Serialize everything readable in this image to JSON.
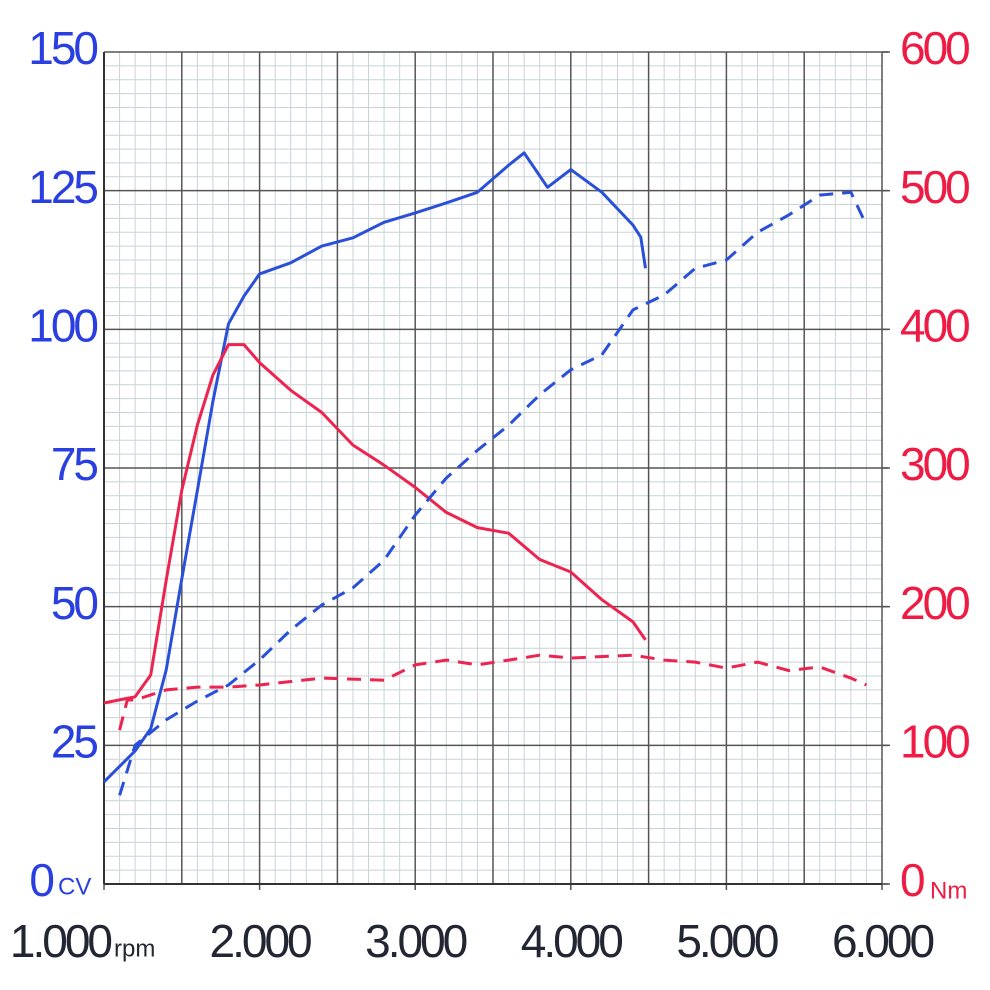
{
  "chart_data": {
    "type": "line",
    "x_unit": "rpm",
    "y_unit": "CV",
    "y2_unit": "Nm",
    "xlim": [
      1000,
      6000
    ],
    "xticks": [
      {
        "value": 1000,
        "label": "1.000"
      },
      {
        "value": 2000,
        "label": "2.000"
      },
      {
        "value": 3000,
        "label": "3.000"
      },
      {
        "value": 4000,
        "label": "4.000"
      },
      {
        "value": 5000,
        "label": "5.000"
      },
      {
        "value": 6000,
        "label": "6.000"
      }
    ],
    "ylim": [
      0,
      150
    ],
    "yticks": [
      0,
      25,
      50,
      75,
      100,
      125,
      150
    ],
    "y2lim": [
      0,
      600
    ],
    "y2ticks": [
      0,
      100,
      200,
      300,
      400,
      500,
      600
    ],
    "grid": true,
    "minor_grid": true,
    "y_color": "#2a3fe0",
    "y2_color": "#ee1c44",
    "x_color": "#222633",
    "series": [
      {
        "color": "#2a4fd8",
        "dashed": false,
        "x": [
          1000,
          1200,
          1300,
          1400,
          1500,
          1600,
          1700,
          1800,
          1900,
          2000,
          2200,
          2400,
          2600,
          2800,
          3000,
          3200,
          3400,
          3600,
          3700,
          3850,
          4000,
          4200,
          4400,
          4450,
          4480
        ],
        "values": [
          18.4,
          24,
          28,
          38.6,
          55,
          71,
          87,
          101,
          106,
          110,
          112,
          115,
          116.5,
          119.3,
          121,
          122.8,
          124.7,
          129.6,
          131.8,
          125.6,
          128.8,
          124.7,
          118.8,
          116.6,
          111
        ]
      },
      {
        "color": "#ec2450",
        "dashed": false,
        "axis": "y2",
        "x": [
          1000,
          1200,
          1300,
          1400,
          1500,
          1600,
          1700,
          1800,
          1900,
          2000,
          2200,
          2400,
          2600,
          2800,
          3000,
          3200,
          3400,
          3600,
          3800,
          4000,
          4200,
          4400,
          4480
        ],
        "values": [
          130.5,
          135,
          150.7,
          219,
          284,
          331,
          367,
          389,
          389,
          376,
          356,
          340,
          316.5,
          302,
          286,
          268,
          257,
          253,
          234,
          225,
          205,
          189,
          176
        ]
      },
      {
        "color": "#2a4fd8",
        "dashed": true,
        "x": [
          1100,
          1200,
          1400,
          1600,
          1800,
          2000,
          2200,
          2400,
          2600,
          2800,
          3000,
          3200,
          3400,
          3600,
          3800,
          4000,
          4200,
          4400,
          4600,
          4800,
          5000,
          5200,
          5400,
          5600,
          5800,
          5900
        ],
        "values": [
          16,
          25,
          29.6,
          33,
          35.9,
          40.4,
          45.8,
          50.3,
          53.4,
          58.4,
          66.5,
          73.2,
          78.2,
          82.7,
          88.2,
          92.7,
          95.4,
          103.5,
          106.2,
          111,
          112.5,
          117.5,
          120.6,
          124.2,
          124.7,
          118.8
        ]
      },
      {
        "color": "#ec2450",
        "dashed": true,
        "axis": "y2",
        "x": [
          1100,
          1150,
          1200,
          1400,
          1600,
          1800,
          2000,
          2400,
          2800,
          3000,
          3200,
          3400,
          3600,
          3800,
          4000,
          4400,
          4600,
          4800,
          5000,
          5200,
          5400,
          5600,
          5800,
          5900
        ],
        "values": [
          111,
          132.7,
          132.7,
          140,
          142,
          142,
          143.5,
          148.5,
          147,
          158,
          161.5,
          158,
          161.5,
          165,
          163,
          165,
          161.5,
          160,
          155.7,
          160,
          154,
          156.5,
          148.5,
          143.5
        ]
      }
    ]
  }
}
